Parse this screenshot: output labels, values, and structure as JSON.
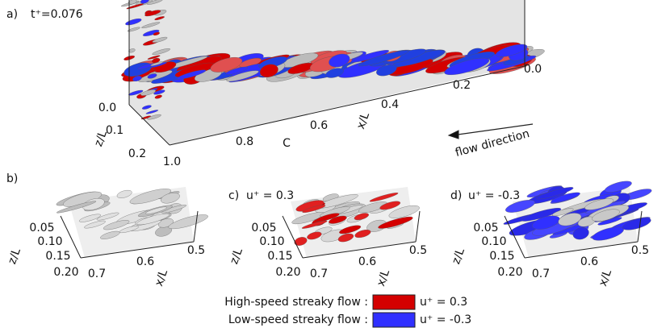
{
  "panel_a": {
    "label": "a)",
    "time": "t⁺=0.076",
    "z_axis": "z/L",
    "z_ticks": [
      "0.0",
      "0.1",
      "0.2"
    ],
    "x_axis": "x/L",
    "x_ticks": [
      "1.0",
      "0.8",
      "0.6",
      "0.4",
      "0.2",
      "0.0"
    ],
    "marker": "C",
    "flow": "flow direction"
  },
  "panel_b": {
    "label": "b)",
    "z_axis": "z/L",
    "z_ticks": [
      "0.05",
      "0.10",
      "0.15",
      "0.20"
    ],
    "x_axis": "x/L",
    "x_ticks": [
      "0.7",
      "0.6",
      "0.5"
    ]
  },
  "panel_c": {
    "label": "c)",
    "level": "u⁺ = 0.3",
    "z_axis": "z/L",
    "z_ticks": [
      "0.05",
      "0.10",
      "0.15",
      "0.20"
    ],
    "x_axis": "x/L",
    "x_ticks": [
      "0.7",
      "0.6",
      "0.5"
    ]
  },
  "panel_d": {
    "label": "d)",
    "level": "u⁺ = -0.3",
    "z_axis": "z/L",
    "z_ticks": [
      "0.05",
      "0.10",
      "0.15",
      "0.20"
    ],
    "x_axis": "x/L",
    "x_ticks": [
      "0.7",
      "0.6",
      "0.5"
    ]
  },
  "legend": {
    "items": [
      {
        "text": "High-speed streaky flow :",
        "level": "u⁺ = 0.3"
      },
      {
        "text": "Low-speed streaky flow :",
        "level": "u⁺ = -0.3"
      }
    ]
  }
}
